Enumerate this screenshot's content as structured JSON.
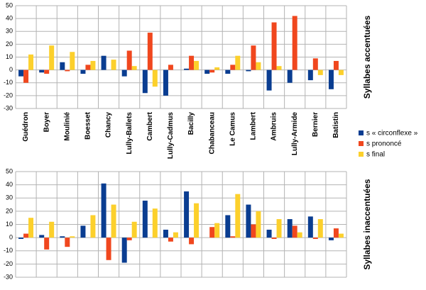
{
  "chart_data": [
    {
      "type": "bar",
      "ylabel": "Syllabes accentuées",
      "categories": [
        "Guédron",
        "Boyer",
        "Moulinié",
        "Boesset",
        "Chancy",
        "Lully-Ballets",
        "Cambert",
        "Lully-Cadmus",
        "Bacilly",
        "Chabanceau",
        "Le Camus",
        "Lambert",
        "Ambruis",
        "Lully-Armide",
        "Bernier",
        "Batistin"
      ],
      "series": [
        {
          "name": "s « circonflexe »",
          "color": "#0a3d91",
          "values": [
            -5,
            -2,
            6,
            -3,
            11,
            -5,
            -18,
            -20,
            1,
            -3,
            -3,
            -1,
            -16,
            -10,
            -8,
            -15
          ]
        },
        {
          "name": "s prononcé",
          "color": "#f0471e",
          "values": [
            -10,
            -3,
            -1,
            4,
            0,
            15,
            29,
            4,
            11,
            -2,
            4,
            19,
            37,
            42,
            9,
            7
          ]
        },
        {
          "name": "s final",
          "color": "#fcd02c",
          "values": [
            12,
            19,
            14,
            7,
            8,
            3,
            -13,
            0,
            7,
            2,
            11,
            6,
            3,
            0,
            -4,
            -4
          ]
        }
      ],
      "ylim": [
        -30,
        50
      ],
      "yticks": [
        -30,
        -20,
        -10,
        0,
        10,
        20,
        30,
        40,
        50
      ],
      "grid": true
    },
    {
      "type": "bar",
      "ylabel": "Syllabes inaccentuées",
      "categories": [
        null,
        null,
        null,
        null,
        null,
        null,
        null,
        null,
        null,
        null,
        null,
        null,
        null,
        null,
        null,
        null
      ],
      "series": [
        {
          "color": "#0a3d91",
          "values": [
            -1,
            2,
            1,
            9,
            41,
            -19,
            28,
            6,
            35,
            0,
            17,
            25,
            6,
            14,
            16,
            -2
          ]
        },
        {
          "color": "#f0471e",
          "values": [
            3,
            -9,
            -7,
            0,
            -17,
            -2,
            0,
            -3,
            -5,
            8,
            1,
            10,
            -1,
            9,
            -1,
            7
          ]
        },
        {
          "color": "#fcd02c",
          "values": [
            15,
            12,
            1,
            17,
            25,
            12,
            22,
            4,
            26,
            11,
            33,
            20,
            14,
            4,
            14,
            3
          ]
        }
      ],
      "ylim": [
        -30,
        50
      ],
      "yticks": [
        -30,
        -20,
        -10,
        0,
        10,
        20,
        30,
        40,
        50
      ],
      "grid": true
    }
  ]
}
